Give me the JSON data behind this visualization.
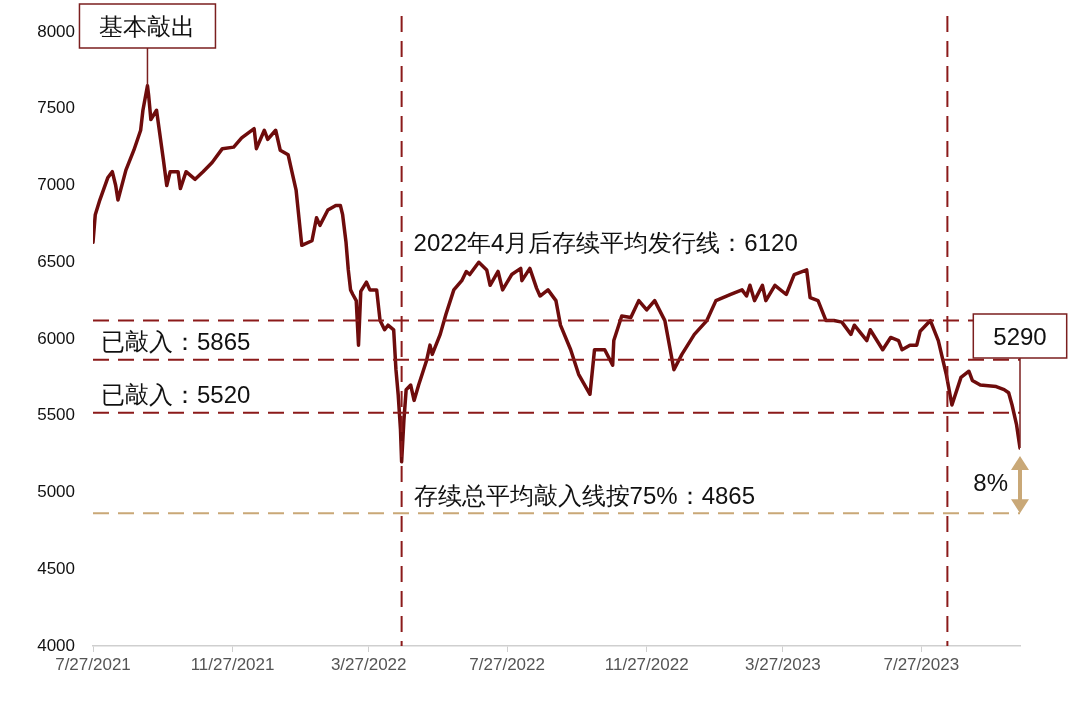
{
  "chart_data": {
    "type": "line",
    "x": [
      "2021-07-27",
      "2021-07-29",
      "2021-08-02",
      "2021-08-09",
      "2021-08-13",
      "2021-08-16",
      "2021-08-18",
      "2021-08-25",
      "2021-09-01",
      "2021-09-07",
      "2021-09-09",
      "2021-09-13",
      "2021-09-14",
      "2021-09-16",
      "2021-09-21",
      "2021-09-27",
      "2021-09-30",
      "2021-10-03",
      "2021-10-10",
      "2021-10-12",
      "2021-10-17",
      "2021-10-25",
      "2021-11-01",
      "2021-11-09",
      "2021-11-18",
      "2021-11-28",
      "2021-12-05",
      "2021-12-16",
      "2021-12-18",
      "2021-12-25",
      "2021-12-28",
      "2022-01-04",
      "2022-01-08",
      "2022-01-15",
      "2022-01-18",
      "2022-01-22",
      "2022-01-27",
      "2022-02-05",
      "2022-02-09",
      "2022-02-12",
      "2022-02-19",
      "2022-02-26",
      "2022-03-02",
      "2022-03-04",
      "2022-03-07",
      "2022-03-09",
      "2022-03-11",
      "2022-03-13",
      "2022-03-16",
      "2022-03-18",
      "2022-03-20",
      "2022-03-25",
      "2022-03-28",
      "2022-04-03",
      "2022-04-06",
      "2022-04-10",
      "2022-04-13",
      "2022-04-18",
      "2022-04-20",
      "2022-04-22",
      "2022-04-24",
      "2022-04-25",
      "2022-04-27",
      "2022-04-29",
      "2022-05-03",
      "2022-05-06",
      "2022-05-10",
      "2022-05-17",
      "2022-05-20",
      "2022-05-22",
      "2022-05-29",
      "2022-06-03",
      "2022-06-10",
      "2022-06-17",
      "2022-06-21",
      "2022-06-24",
      "2022-07-02",
      "2022-07-09",
      "2022-07-12",
      "2022-07-19",
      "2022-07-23",
      "2022-07-31",
      "2022-08-08",
      "2022-08-09",
      "2022-08-16",
      "2022-08-22",
      "2022-08-25",
      "2022-09-01",
      "2022-09-08",
      "2022-09-12",
      "2022-09-21",
      "2022-09-28",
      "2022-10-08",
      "2022-10-12",
      "2022-10-21",
      "2022-10-28",
      "2022-10-29",
      "2022-11-05",
      "2022-11-13",
      "2022-11-20",
      "2022-11-27",
      "2022-12-04",
      "2022-12-13",
      "2022-12-21",
      "2022-12-28",
      "2023-01-08",
      "2023-01-19",
      "2023-01-27",
      "2023-02-09",
      "2023-02-19",
      "2023-02-23",
      "2023-02-26",
      "2023-03-02",
      "2023-03-09",
      "2023-03-12",
      "2023-03-20",
      "2023-03-30",
      "2023-04-06",
      "2023-04-17",
      "2023-04-20",
      "2023-04-27",
      "2023-05-04",
      "2023-05-11",
      "2023-05-18",
      "2023-05-26",
      "2023-05-29",
      "2023-06-09",
      "2023-06-12",
      "2023-06-23",
      "2023-06-30",
      "2023-07-07",
      "2023-07-10",
      "2023-07-17",
      "2023-07-23",
      "2023-07-26",
      "2023-08-04",
      "2023-08-11",
      "2023-08-18",
      "2023-08-23",
      "2023-08-31",
      "2023-09-07",
      "2023-09-10",
      "2023-09-17",
      "2023-10-01",
      "2023-10-08",
      "2023-10-12",
      "2023-10-15",
      "2023-10-19",
      "2023-10-22"
    ],
    "series": [
      {
        "color": "#6e0c0c",
        "values": [
          6630,
          6810,
          6905,
          7050,
          7090,
          7000,
          6905,
          7100,
          7230,
          7360,
          7490,
          7650,
          7590,
          7430,
          7490,
          7170,
          7000,
          7090,
          7090,
          6980,
          7090,
          7040,
          7090,
          7150,
          7240,
          7250,
          7310,
          7370,
          7240,
          7360,
          7300,
          7360,
          7230,
          7200,
          7100,
          6970,
          6610,
          6640,
          6790,
          6740,
          6840,
          6870,
          6870,
          6810,
          6630,
          6450,
          6320,
          6290,
          6250,
          5960,
          6310,
          6370,
          6320,
          6320,
          6120,
          6060,
          6090,
          6060,
          5800,
          5635,
          5410,
          5200,
          5470,
          5670,
          5700,
          5600,
          5700,
          5860,
          5960,
          5900,
          6030,
          6160,
          6320,
          6380,
          6440,
          6420,
          6500,
          6450,
          6350,
          6440,
          6320,
          6420,
          6460,
          6380,
          6460,
          6330,
          6280,
          6320,
          6250,
          6090,
          5930,
          5770,
          5640,
          5930,
          5930,
          5830,
          5990,
          6150,
          6140,
          6250,
          6190,
          6250,
          6120,
          5800,
          5900,
          6030,
          6120,
          6250,
          6290,
          6320,
          6280,
          6350,
          6250,
          6350,
          6250,
          6350,
          6290,
          6420,
          6450,
          6270,
          6250,
          6120,
          6120,
          6110,
          6030,
          6090,
          5990,
          6060,
          5930,
          6010,
          5990,
          5930,
          5960,
          5960,
          6050,
          6120,
          5990,
          5770,
          5570,
          5750,
          5790,
          5730,
          5700,
          5690,
          5670,
          5650,
          5570,
          5440,
          5290
        ]
      }
    ],
    "xlim": [
      "2021-07-27",
      "2023-10-22"
    ],
    "xticks": [
      {
        "value": "2021-07-27",
        "label": "7/27/2021"
      },
      {
        "value": "2021-11-27",
        "label": "11/27/2021"
      },
      {
        "value": "2022-03-27",
        "label": "3/27/2022"
      },
      {
        "value": "2022-07-27",
        "label": "7/27/2022"
      },
      {
        "value": "2022-11-27",
        "label": "11/27/2022"
      },
      {
        "value": "2023-03-27",
        "label": "3/27/2023"
      },
      {
        "value": "2023-07-27",
        "label": "7/27/2023"
      }
    ],
    "ylim": [
      4000,
      8000
    ],
    "yticks": [
      4000,
      4500,
      5000,
      5500,
      6000,
      6500,
      7000,
      7500,
      8000
    ],
    "ref_lines": [
      {
        "axis": "y",
        "value": 5865,
        "label": "已敲入：5865",
        "color": "#8b1a1a",
        "line_style": "dashed"
      },
      {
        "axis": "y",
        "value": 5520,
        "label": "已敲入：5520",
        "color": "#8b1a1a",
        "line_style": "dashed"
      },
      {
        "axis": "y",
        "value": 6120,
        "label": "2022年4月后存续平均发行线：6120",
        "color": "#8b1a1a",
        "line_style": "dashed"
      },
      {
        "axis": "y",
        "value": 4865,
        "label": "存续总平均敲入线按75%：4865",
        "color": "#c9a877",
        "line_style": "dashed"
      },
      {
        "axis": "x",
        "value": "2022-04-25",
        "color": "#8b1a1a",
        "line_style": "dashed"
      },
      {
        "axis": "x",
        "value": "2023-08-19",
        "color": "#8b1a1a",
        "line_style": "dashed"
      }
    ],
    "annotations": [
      {
        "text": "基本敲出",
        "x": "2021-09-13",
        "y": 7650
      },
      {
        "text": "5290",
        "x": "2023-10-22",
        "y": 5290
      },
      "8%"
    ],
    "grid": false,
    "legend": false,
    "marker": "none",
    "line_style": "solid"
  }
}
